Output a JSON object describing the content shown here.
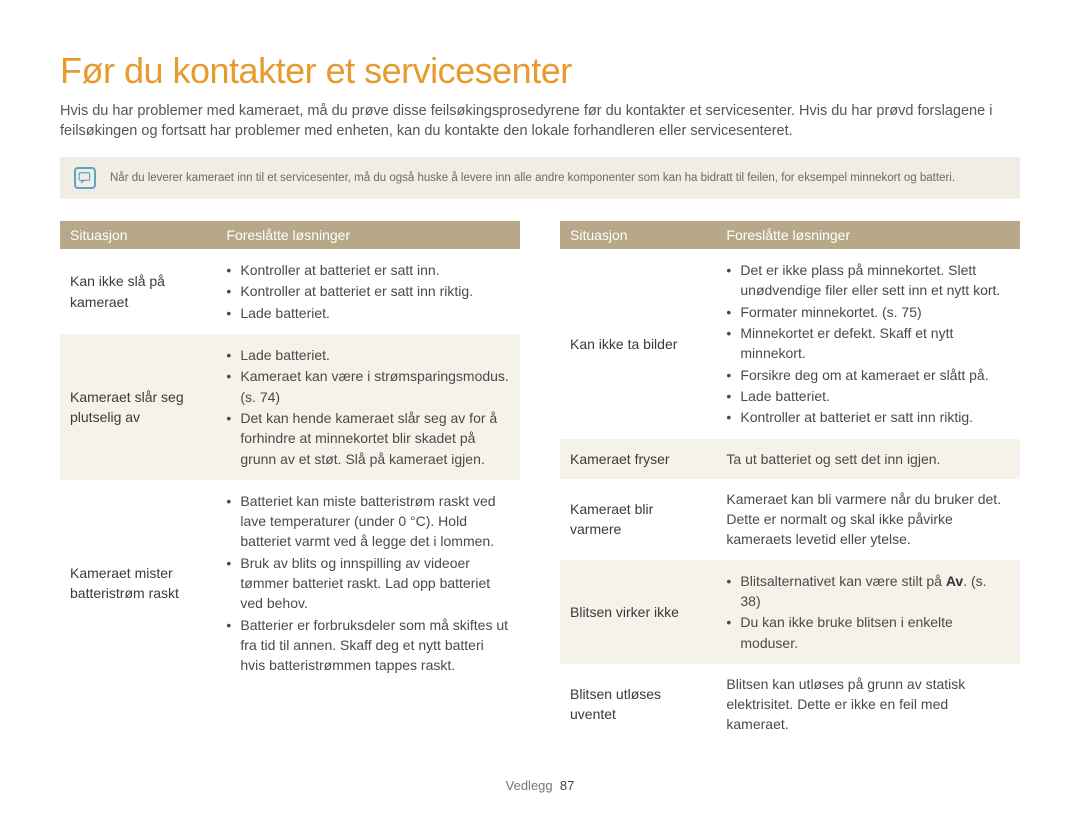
{
  "title": "Før du kontakter et servicesenter",
  "intro": "Hvis du har problemer med kameraet, må du prøve disse feilsøkingsprosedyrene før du kontakter et servicesenter. Hvis du har prøvd forslagene i feilsøkingen og fortsatt har problemer med enheten, kan du kontakte den lokale forhandleren eller servicesenteret.",
  "note": "Når du leverer kameraet inn til et servicesenter, må du også huske å levere inn alle andre komponenter som kan ha bidratt til feilen, for eksempel minnekort og batteri.",
  "headers": {
    "situation": "Situasjon",
    "solutions": "Foreslåtte løsninger"
  },
  "left": [
    {
      "situation": "Kan ikke slå på kameraet",
      "solutions": [
        "Kontroller at batteriet er satt inn.",
        "Kontroller at batteriet er satt inn riktig.",
        "Lade batteriet."
      ]
    },
    {
      "situation": "Kameraet slår seg plutselig av",
      "solutions": [
        "Lade batteriet.",
        "Kameraet kan være i strømsparingsmodus. (s. 74)",
        "Det kan hende kameraet slår seg av for å forhindre at minnekortet blir skadet på grunn av et støt. Slå på kameraet igjen."
      ]
    },
    {
      "situation": "Kameraet mister batteristrøm raskt",
      "solutions": [
        "Batteriet kan miste batteristrøm raskt ved lave temperaturer (under 0 °C). Hold batteriet varmt ved å legge det i lommen.",
        "Bruk av blits og innspilling av videoer tømmer batteriet raskt. Lad opp batteriet ved behov.",
        "Batterier er forbruksdeler som må skiftes ut fra tid til annen. Skaff deg et nytt batteri hvis batteristrømmen tappes raskt."
      ]
    }
  ],
  "right": [
    {
      "situation": "Kan ikke ta bilder",
      "solutions": [
        "Det er ikke plass på minnekortet. Slett unødvendige filer eller sett inn et nytt kort.",
        "Formater minnekortet. (s. 75)",
        "Minnekortet er defekt. Skaff et nytt minnekort.",
        "Forsikre deg om at kameraet er slått på.",
        "Lade batteriet.",
        "Kontroller at batteriet er satt inn riktig."
      ]
    },
    {
      "situation": "Kameraet fryser",
      "plain": "Ta ut batteriet og sett det inn igjen."
    },
    {
      "situation": "Kameraet blir varmere",
      "plain": "Kameraet kan bli varmere når du bruker det. Dette er normalt og skal ikke påvirke kameraets levetid eller ytelse."
    },
    {
      "situation": "Blitsen virker ikke",
      "solutions_html": [
        "Blitsalternativet kan være stilt på <span class=\"bold-inline\">Av</span>. (s. 38)",
        "Du kan ikke bruke blitsen i enkelte moduser."
      ]
    },
    {
      "situation": "Blitsen utløses uventet",
      "plain": "Blitsen kan utløses på grunn av statisk elektrisitet. Dette er ikke en feil med kameraet."
    }
  ],
  "footer": {
    "section": "Vedlegg",
    "page": "87"
  },
  "colors": {
    "title": "#e79a2e",
    "header_bg": "#b6a889",
    "note_bg": "#f1ece4",
    "alt_row": "#f5f2ea",
    "icon_border": "#5aa6c4"
  }
}
